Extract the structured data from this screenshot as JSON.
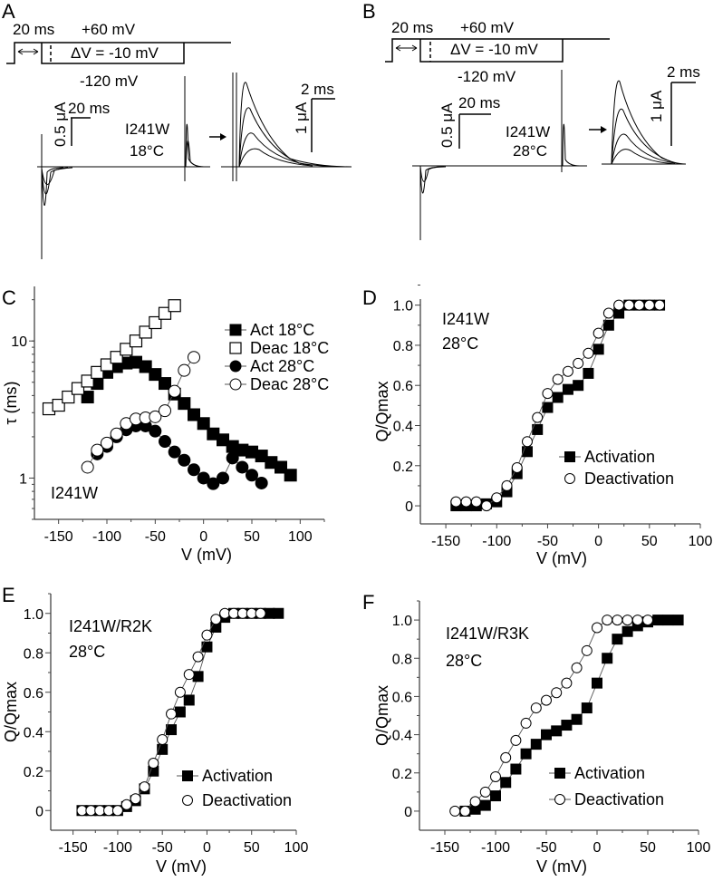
{
  "panels": {
    "A": {
      "letter": "A",
      "protocol": {
        "prepulse": "20 ms",
        "hold_high": "+60 mV",
        "step": "ΔV = -10 mV",
        "hold_low": "-120 mV"
      },
      "scalebar_main": {
        "time": "20 ms",
        "current": "0.5 μA"
      },
      "scalebar_inset": {
        "time": "2 ms",
        "current": "1 μA"
      },
      "construct": "I241W",
      "temperature": "18°C"
    },
    "B": {
      "letter": "B",
      "protocol": {
        "prepulse": "20 ms",
        "hold_high": "+60 mV",
        "step": "ΔV = -10 mV",
        "hold_low": "-120 mV"
      },
      "scalebar_main": {
        "time": "20 ms",
        "current": "0.5 μA"
      },
      "scalebar_inset": {
        "time": "2 ms",
        "current": "1 μA"
      },
      "construct": "I241W",
      "temperature": "28°C"
    }
  },
  "chart_data": [
    {
      "panel": "C",
      "type": "scatter",
      "title": "",
      "annotation": "I241W",
      "xlabel": "V (mV)",
      "ylabel": "τ (ms)",
      "yscale": "log",
      "xlim": [
        -175,
        125
      ],
      "ylim": [
        0.5,
        25
      ],
      "xticks": [
        -150,
        -100,
        -50,
        0,
        50,
        100
      ],
      "yticks": [
        1,
        10
      ],
      "legend_position": "top-right",
      "series": [
        {
          "name": "Act 18°C",
          "marker": "filled-square",
          "x": [
            -120,
            -110,
            -100,
            -90,
            -80,
            -70,
            -60,
            -50,
            -40,
            -30,
            -20,
            -10,
            0,
            10,
            20,
            30,
            40,
            50,
            60,
            70,
            80,
            90
          ],
          "y": [
            3.9,
            4.9,
            5.9,
            6.5,
            6.9,
            7.0,
            6.5,
            5.7,
            4.9,
            4.1,
            3.5,
            2.9,
            2.5,
            2.1,
            1.9,
            1.7,
            1.6,
            1.55,
            1.45,
            1.3,
            1.2,
            1.05
          ]
        },
        {
          "name": "Deac 18°C",
          "marker": "open-square",
          "x": [
            -160,
            -150,
            -140,
            -130,
            -120,
            -110,
            -100,
            -90,
            -80,
            -70,
            -60,
            -50,
            -40,
            -30
          ],
          "y": [
            3.2,
            3.4,
            3.9,
            4.5,
            5.1,
            5.9,
            6.7,
            7.6,
            8.7,
            10.0,
            11.6,
            13.6,
            15.9,
            18.1
          ]
        },
        {
          "name": "Act 28°C",
          "marker": "filled-circle",
          "x": [
            -110,
            -100,
            -90,
            -80,
            -70,
            -60,
            -50,
            -40,
            -30,
            -20,
            -10,
            0,
            10,
            20,
            30,
            40,
            50,
            60
          ],
          "y": [
            1.5,
            1.7,
            2.0,
            2.25,
            2.4,
            2.4,
            2.2,
            1.85,
            1.55,
            1.35,
            1.15,
            1.0,
            0.91,
            1.0,
            1.4,
            1.2,
            1.05,
            0.92
          ]
        },
        {
          "name": "Deac 28°C",
          "marker": "open-circle",
          "x": [
            -120,
            -110,
            -100,
            -90,
            -80,
            -70,
            -60,
            -50,
            -40,
            -30,
            -20,
            -10
          ],
          "y": [
            1.2,
            1.6,
            1.8,
            2.1,
            2.5,
            2.7,
            2.75,
            2.8,
            3.1,
            4.3,
            6.1,
            7.6
          ]
        }
      ]
    },
    {
      "panel": "D",
      "type": "scatter",
      "annotation": [
        "I241W",
        "28°C"
      ],
      "xlabel": "V (mV)",
      "ylabel": "Q/Qmax",
      "xlim": [
        -175,
        100
      ],
      "ylim": [
        -0.09,
        1.03
      ],
      "xticks": [
        -150,
        -100,
        -50,
        0,
        50,
        100
      ],
      "yticks": [
        0,
        0.2,
        0.4,
        0.6,
        0.8,
        1.0
      ],
      "ytick_labels": [
        "0",
        "0.2",
        "0.4",
        "0.6",
        "0.8",
        "1.0"
      ],
      "legend_position": "bottom-right",
      "series": [
        {
          "name": "Activation",
          "marker": "filled-square",
          "x": [
            -140,
            -130,
            -120,
            -110,
            -100,
            -90,
            -80,
            -70,
            -60,
            -50,
            -40,
            -30,
            -20,
            -10,
            0,
            10,
            20,
            30,
            40,
            50,
            60
          ],
          "y": [
            0.0,
            0.0,
            0.0,
            0.01,
            0.02,
            0.07,
            0.16,
            0.27,
            0.38,
            0.49,
            0.54,
            0.58,
            0.6,
            0.66,
            0.78,
            0.9,
            0.96,
            1.0,
            1.0,
            1.0,
            1.0
          ]
        },
        {
          "name": "Deactivation",
          "marker": "open-circle",
          "x": [
            -140,
            -130,
            -120,
            -110,
            -100,
            -90,
            -80,
            -70,
            -60,
            -50,
            -40,
            -30,
            -20,
            -10,
            0,
            10,
            20,
            30,
            40,
            50,
            60
          ],
          "y": [
            0.02,
            0.02,
            0.02,
            0.0,
            0.04,
            0.1,
            0.19,
            0.32,
            0.44,
            0.56,
            0.63,
            0.67,
            0.71,
            0.76,
            0.86,
            0.96,
            1.0,
            1.0,
            1.0,
            1.0,
            1.0
          ]
        }
      ]
    },
    {
      "panel": "E",
      "type": "scatter",
      "annotation": [
        "I241W/R2K",
        "28°C"
      ],
      "xlabel": "V (mV)",
      "ylabel": "Q/Qmax",
      "xlim": [
        -175,
        100
      ],
      "ylim": [
        -0.1,
        1.1
      ],
      "xticks": [
        -150,
        -100,
        -50,
        0,
        50,
        100
      ],
      "yticks": [
        0,
        0.2,
        0.4,
        0.6,
        0.8,
        1.0
      ],
      "ytick_labels": [
        "0",
        "0.2",
        "0.4",
        "0.6",
        "0.8",
        "1.0"
      ],
      "legend_position": "bottom-right",
      "series": [
        {
          "name": "Activation",
          "marker": "filled-square",
          "x": [
            -140,
            -130,
            -120,
            -110,
            -100,
            -90,
            -80,
            -70,
            -60,
            -50,
            -40,
            -30,
            -20,
            -10,
            0,
            10,
            20,
            30,
            40,
            50,
            60,
            70,
            80
          ],
          "y": [
            0,
            0,
            0,
            0,
            0,
            0.02,
            0.05,
            0.11,
            0.2,
            0.31,
            0.41,
            0.5,
            0.56,
            0.68,
            0.83,
            0.93,
            0.98,
            1.0,
            1.0,
            1.0,
            1.0,
            1.0,
            1.0
          ]
        },
        {
          "name": "Deactivation",
          "marker": "open-circle",
          "x": [
            -140,
            -130,
            -120,
            -110,
            -100,
            -90,
            -80,
            -70,
            -60,
            -50,
            -40,
            -30,
            -20,
            -10,
            0,
            10,
            20,
            30,
            40,
            50,
            60
          ],
          "y": [
            0,
            0,
            0,
            0,
            0,
            0.03,
            0.06,
            0.12,
            0.24,
            0.36,
            0.49,
            0.6,
            0.69,
            0.78,
            0.89,
            0.97,
            1.0,
            1.0,
            1.0,
            1.0,
            1.0
          ]
        }
      ]
    },
    {
      "panel": "F",
      "type": "scatter",
      "annotation": [
        "I241W/R3K",
        "28°C"
      ],
      "xlabel": "V (mV)",
      "ylabel": "Q/Qmax",
      "xlim": [
        -175,
        100
      ],
      "ylim": [
        -0.1,
        1.1
      ],
      "xticks": [
        -150,
        -100,
        -50,
        0,
        50,
        100
      ],
      "yticks": [
        0,
        0.2,
        0.4,
        0.6,
        0.8,
        1.0
      ],
      "ytick_labels": [
        "0",
        "0.2",
        "0.4",
        "0.6",
        "0.8",
        "1.0"
      ],
      "legend_position": "bottom-right",
      "series": [
        {
          "name": "Activation",
          "marker": "filled-square",
          "x": [
            -130,
            -120,
            -110,
            -100,
            -90,
            -80,
            -70,
            -60,
            -50,
            -40,
            -30,
            -20,
            -10,
            0,
            10,
            20,
            30,
            40,
            50,
            60,
            70,
            80
          ],
          "y": [
            0,
            0.01,
            0.03,
            0.08,
            0.15,
            0.22,
            0.3,
            0.35,
            0.4,
            0.42,
            0.45,
            0.48,
            0.54,
            0.67,
            0.8,
            0.9,
            0.94,
            0.97,
            0.99,
            1.0,
            1.0,
            1.0
          ]
        },
        {
          "name": "Deactivation",
          "marker": "open-circle",
          "x": [
            -140,
            -130,
            -120,
            -110,
            -100,
            -90,
            -80,
            -70,
            -60,
            -50,
            -40,
            -30,
            -20,
            -10,
            0,
            10,
            20,
            30,
            40,
            50
          ],
          "y": [
            0,
            0,
            0.05,
            0.1,
            0.18,
            0.28,
            0.37,
            0.46,
            0.54,
            0.58,
            0.62,
            0.67,
            0.75,
            0.84,
            0.96,
            1.0,
            1.0,
            1.0,
            1.0,
            1.0
          ]
        }
      ]
    }
  ]
}
